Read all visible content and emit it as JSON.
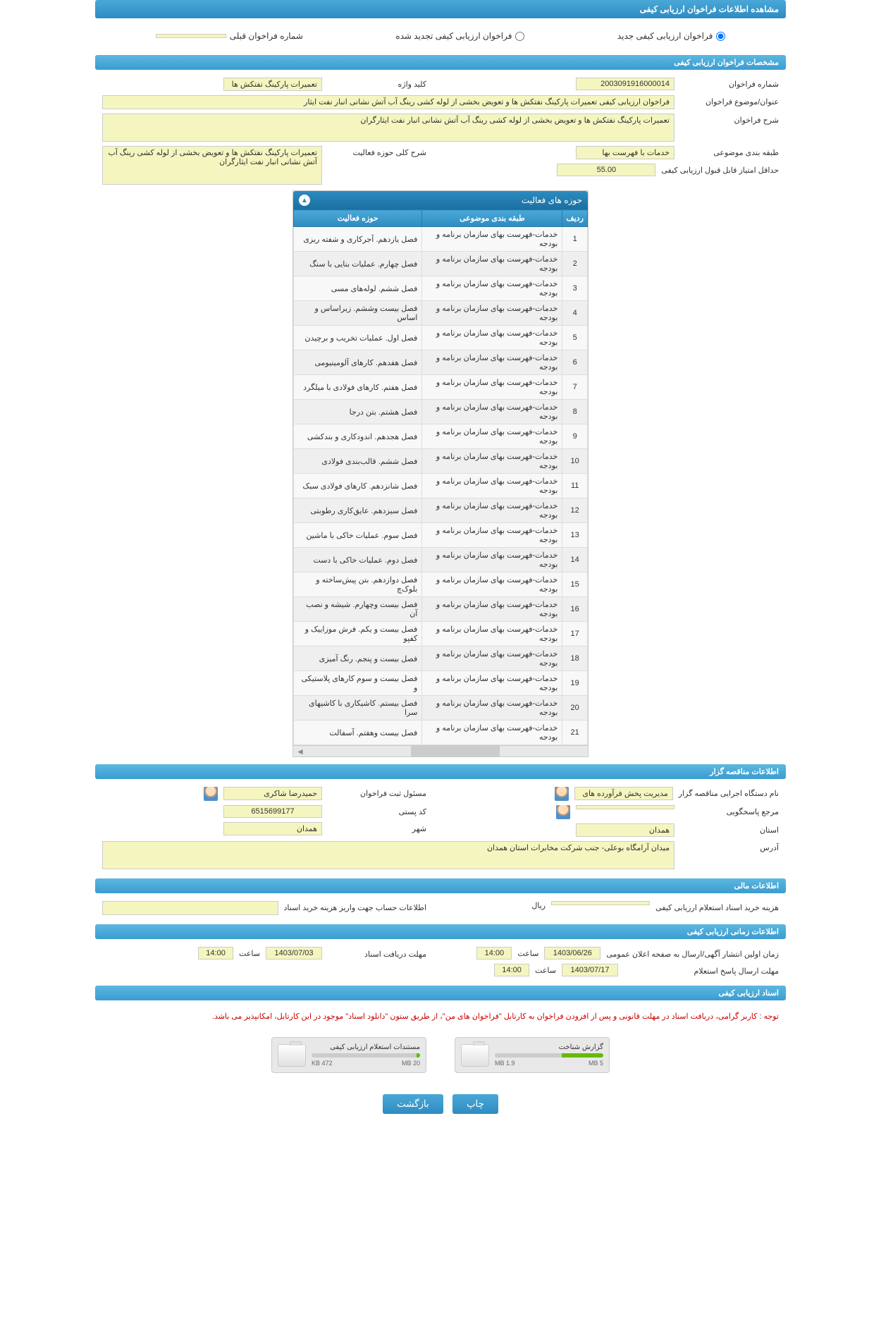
{
  "page_title": "مشاهده اطلاعات فراخوان ارزیابی کیفی",
  "radios": {
    "new": "فراخوان ارزیابی کیفی جدید",
    "renewed": "فراخوان ارزیابی کیفی تجدید شده",
    "prev_label": "شماره فراخوان قبلی"
  },
  "sections": {
    "spec": "مشخصات فراخوان ارزیابی کیفی",
    "bidder": "اطلاعات مناقصه گزار",
    "financial": "اطلاعات مالی",
    "timing": "اطلاعات زمانی ارزیابی کیفی",
    "docs": "اسناد ارزیابی کیفی"
  },
  "spec": {
    "num_label": "شماره فراخوان",
    "num": "2003091916000014",
    "keyword_label": "کلید واژه",
    "keyword": "تعمیرات پارکینگ نفتکش ها",
    "title_label": "عنوان/موضوع فراخوان",
    "title": "فراخوان ارزیابی کیفی تعمیرات پارکینگ نفتکش ها و تعویض بخشی از لوله کشی رینگ آب آتش نشانی انبار نفت ایثار",
    "desc_label": "شرح فراخوان",
    "desc": "تعمیرات پارکینگ نفتکش ها و تعویض بخشی از لوله کشی رینگ آب آتش نشانی انبار نفت ایثارگران",
    "class_label": "طبقه بندی موضوعی",
    "class": "خدمات با فهرست بها",
    "min_score_label": "حداقل امتیاز قابل قبول ارزیابی کیفی",
    "min_score": "55.00",
    "scope_label": "شرح کلی حوزه فعالیت",
    "scope": "تعمیرات پارکینگ نفتکش ها و تعویض بخشی از لوله کشی رینگ آب آتش نشانی انبار نفت ایثارگران"
  },
  "activities": {
    "title": "حوزه های فعالیت",
    "col_row": "ردیف",
    "col_class": "طبقه بندی موضوعی",
    "col_scope": "حوزه فعالیت",
    "class_text": "خدمات-فهرست بهای سازمان برنامه و بودجه",
    "rows": [
      {
        "n": "1",
        "s": "فصل یازدهم. آجرکاری و شفته ریزی"
      },
      {
        "n": "2",
        "s": "فصل چهارم. عملیات بنایی با سنگ"
      },
      {
        "n": "3",
        "s": "فصل ششم. لوله‌های مسی"
      },
      {
        "n": "4",
        "s": "فصل بیست وششم. زیراساس و اساس"
      },
      {
        "n": "5",
        "s": "فصل اول. عملیات تخریب و برچیدن"
      },
      {
        "n": "6",
        "s": "فصل هفدهم. کارهای آلومینیومی"
      },
      {
        "n": "7",
        "s": "فصل هفتم. کارهای فولادی با میلگرد"
      },
      {
        "n": "8",
        "s": "فصل هشتم. بتن درجا"
      },
      {
        "n": "9",
        "s": "فصل هجدهم. اندودکاری و بندکشی"
      },
      {
        "n": "10",
        "s": "فصل ششم. قالب‌بندی فولادی"
      },
      {
        "n": "11",
        "s": "فصل شانزدهم. کارهای فولادی سبک"
      },
      {
        "n": "12",
        "s": "فصل سیزدهم. عایق‌کاری رطوبتی"
      },
      {
        "n": "13",
        "s": "فصل سوم. عملیات خاکی با ماشین"
      },
      {
        "n": "14",
        "s": "فصل دوم. عملیات خاکی با دست"
      },
      {
        "n": "15",
        "s": "فصل دوازدهم. بتن پیش‌ساخته و بلوک‌چ"
      },
      {
        "n": "16",
        "s": "فصل بیست وچهارم. شیشه و نصب آن"
      },
      {
        "n": "17",
        "s": "فصل بیست و یکم. فرش موزاییک و کفپو"
      },
      {
        "n": "18",
        "s": "فصل بیست و پنجم. رنگ آمیزی"
      },
      {
        "n": "19",
        "s": "فصل بیست و سوم کارهای پلاستیکی و"
      },
      {
        "n": "20",
        "s": "فصل بیستم. کاشیکاری با کاشیهای سرا"
      },
      {
        "n": "21",
        "s": "فصل بیست وهفتم. آسفالت"
      }
    ]
  },
  "bidder": {
    "org_label": "نام دستگاه اجرایی مناقصه گزار",
    "org": "مدیریت پخش فرآورده های",
    "reg_label": "مسئول ثبت فراخوان",
    "reg": "حمیدرضا شاکری",
    "resp_label": "مرجع پاسخگویی",
    "resp": "",
    "postal_label": "کد پستی",
    "postal": "6515699177",
    "province_label": "استان",
    "province": "همدان",
    "city_label": "شهر",
    "city": "همدان",
    "addr_label": "آدرس",
    "addr": "میدان آرامگاه بوعلی- جنب شرکت مخابرات استان همدان"
  },
  "financial": {
    "cost_label": "هزینه خرید اسناد استعلام ارزیابی کیفی",
    "cost": "",
    "rial": "ریال",
    "account_label": "اطلاعات حساب جهت واریز هزینه خرید اسناد",
    "account": ""
  },
  "timing": {
    "publish_label": "زمان اولین انتشار آگهی/ارسال به صفحه اعلان عمومی",
    "publish_date": "1403/06/26",
    "publish_time": "14:00",
    "receive_label": "مهلت دریافت اسناد",
    "receive_date": "1403/07/03",
    "receive_time": "14:00",
    "reply_label": "مهلت ارسال پاسخ استعلام",
    "reply_date": "1403/07/17",
    "reply_time": "14:00",
    "hour_label": "ساعت"
  },
  "docs": {
    "notice": "توجه : کاربر گرامی، دریافت اسناد در مهلت قانونی و پس از افزودن فراخوان به کارتابل \"فراخوان های من\"، از طریق ستون \"دانلود اسناد\" موجود در این کارتابل، امکانپذیر می باشد.",
    "report": "گزارش شناخت",
    "report_size": "1.9 MB",
    "report_max": "5 MB",
    "docs_title": "مستندات استعلام ارزیابی کیفی",
    "docs_size": "472 KB",
    "docs_max": "20 MB"
  },
  "buttons": {
    "print": "چاپ",
    "back": "بازگشت"
  },
  "colors": {
    "header_bg": "#3a9cd0",
    "field_bg": "#f5f5c0",
    "notice": "#cc0000"
  }
}
